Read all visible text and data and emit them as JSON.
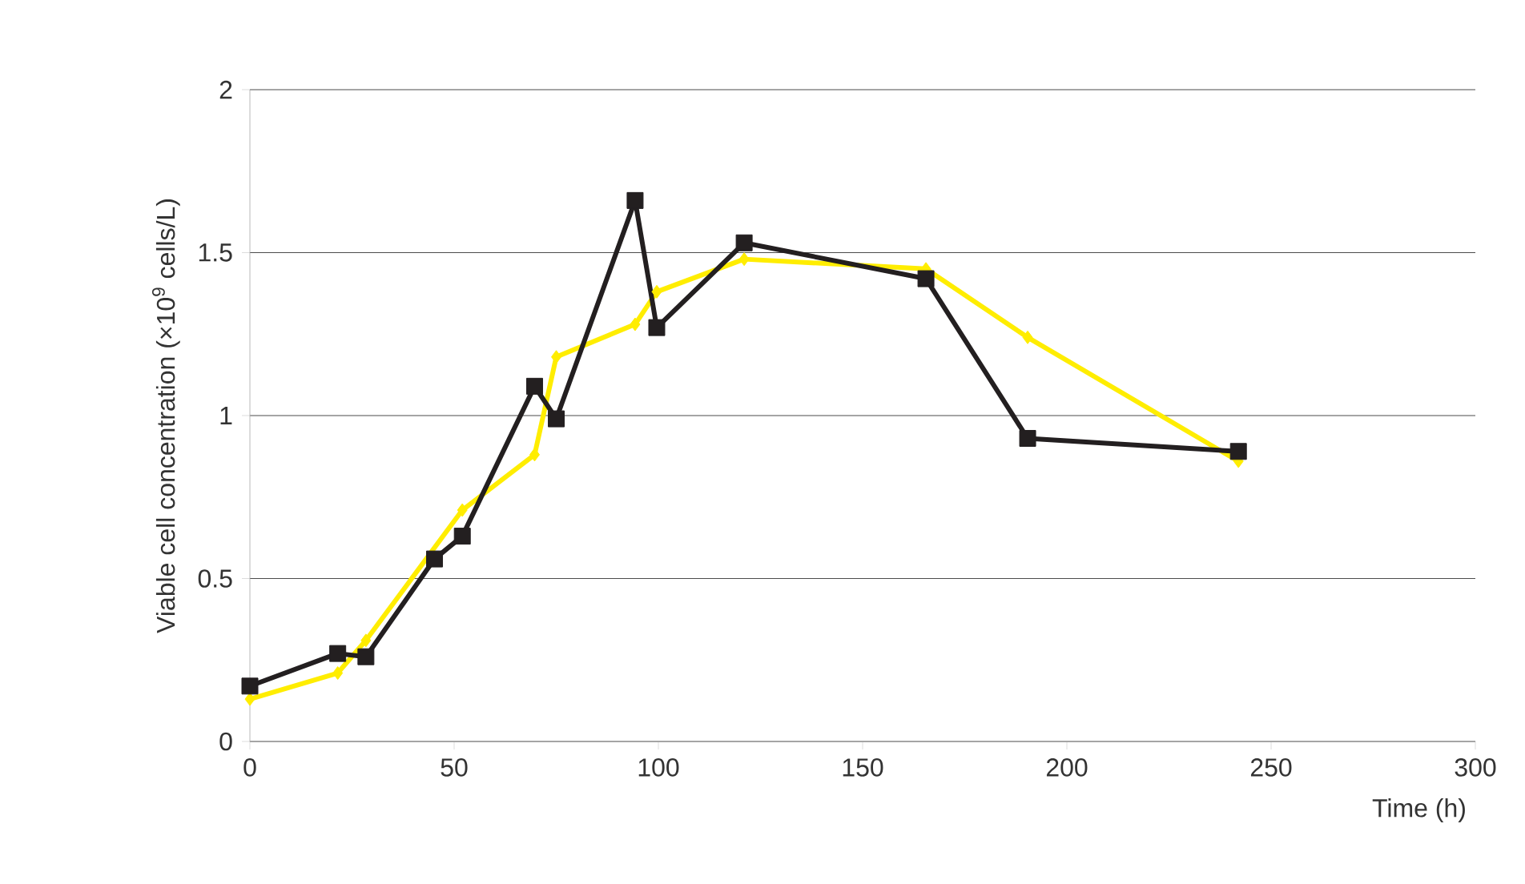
{
  "chart_data": {
    "type": "line",
    "xlabel": "Time (h)",
    "ylabel": "Viable cell concentration (×10$^{9}$ cells/L)",
    "xlim": [
      0,
      300
    ],
    "xticks": [
      0,
      50,
      100,
      150,
      200,
      250,
      300
    ],
    "ylim": [
      0,
      2
    ],
    "yticks": [
      0,
      0.5,
      1,
      1.5,
      2
    ],
    "grid": "y",
    "series": [
      {
        "color": "#ffed00",
        "marker": "diamond",
        "x": [
          0,
          21.5,
          28.4,
          45,
          52,
          69.7,
          75,
          94.3,
          99.6,
          121,
          165.5,
          190.4,
          242
        ],
        "values": [
          0.13,
          0.21,
          0.31,
          null,
          0.71,
          0.88,
          1.18,
          1.28,
          1.38,
          1.48,
          1.45,
          1.24,
          0.86
        ]
      },
      {
        "color": "#231f20",
        "marker": "square",
        "x": [
          0,
          21.5,
          28.4,
          45.2,
          52,
          69.7,
          75,
          94.3,
          99.6,
          121,
          165.5,
          190.4,
          242
        ],
        "values": [
          0.17,
          0.27,
          0.26,
          0.56,
          0.63,
          1.09,
          0.99,
          1.66,
          1.27,
          1.53,
          1.42,
          0.93,
          0.89
        ]
      }
    ]
  }
}
